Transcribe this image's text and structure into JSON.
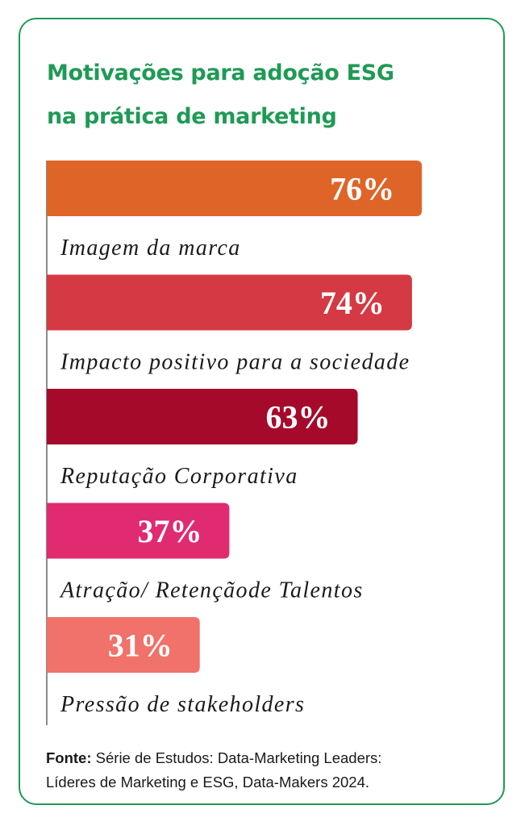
{
  "title_line1": "Motivações para adoção ESG",
  "title_line2": "na prática de marketing",
  "source": {
    "label": "Fonte:",
    "line1": "Série de Estudos: Data-Marketing Leaders:",
    "line2": "Líderes de Marketing e ESG, Data-Makers 2024."
  },
  "colors": {
    "border": "#1f9a55",
    "title": "#1f9a55",
    "axis": "#666666"
  },
  "chart_data": {
    "type": "bar",
    "orientation": "horizontal",
    "title": "Motivações para adoção ESG na prática de marketing",
    "categories": [
      "Imagem da marca",
      "Impacto positivo para a sociedade",
      "Reputação Corporativa",
      "Atração/ Retençãode Talentos",
      "Pressão de stakeholders"
    ],
    "values": [
      76,
      74,
      63,
      37,
      31
    ],
    "value_labels": [
      "76%",
      "74%",
      "63%",
      "37%",
      "31%"
    ],
    "colors": [
      "#df6428",
      "#d53943",
      "#a60a2b",
      "#e02b71",
      "#f0726a"
    ],
    "unit": "%",
    "xlim": [
      0,
      100
    ],
    "grid": false,
    "legend": "none"
  }
}
